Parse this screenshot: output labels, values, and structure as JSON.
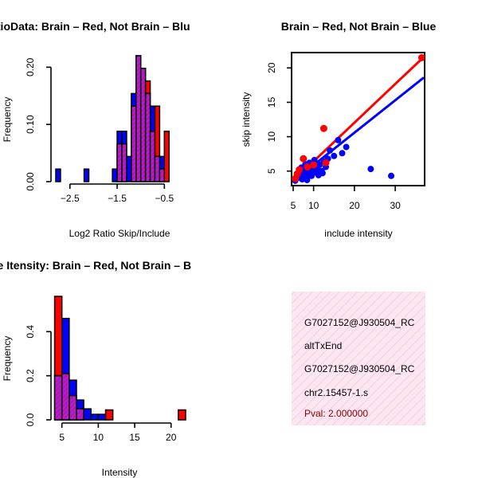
{
  "colors": {
    "brain": "#ff0000",
    "not_brain": "#0000ff",
    "overlap": "#a020f0",
    "outline": "#000000",
    "info_bg": "#f9dcec",
    "pval": "#8b0000"
  },
  "chart_data": [
    {
      "type": "bar",
      "subtype": "histogram",
      "title": "RatioData: Brain - Red, Not Brain - Blue",
      "title_visible": "RatioData: Brain – Red, Not Brain – Blu",
      "xlabel": "Log2 Ratio Skip/Include",
      "ylabel": "Frequency",
      "xticks": [
        -2.5,
        -1.5,
        -0.5
      ],
      "xtick_labels": [
        "−2.5",
        "−1.5",
        "−0.5"
      ],
      "yticks": [
        0.0,
        0.1,
        0.2
      ],
      "ytick_labels": [
        "0.00",
        "0.10",
        "0.20"
      ],
      "xlim": [
        -2.8,
        -0.05
      ],
      "ylim": [
        0,
        0.22
      ],
      "bin_width": 0.1,
      "series": [
        {
          "name": "Not Brain",
          "color": "blue",
          "bins": [
            {
              "x0": -2.8,
              "x1": -2.7,
              "value": 0.022
            },
            {
              "x0": -2.2,
              "x1": -2.1,
              "value": 0.022
            },
            {
              "x0": -1.6,
              "x1": -1.5,
              "value": 0.022
            },
            {
              "x0": -1.5,
              "x1": -1.4,
              "value": 0.088
            },
            {
              "x0": -1.4,
              "x1": -1.3,
              "value": 0.088
            },
            {
              "x0": -1.3,
              "x1": -1.2,
              "value": 0.044
            },
            {
              "x0": -1.2,
              "x1": -1.1,
              "value": 0.154
            },
            {
              "x0": -1.1,
              "x1": -1.0,
              "value": 0.22
            },
            {
              "x0": -1.0,
              "x1": -0.9,
              "value": 0.198
            },
            {
              "x0": -0.9,
              "x1": -0.8,
              "value": 0.154
            },
            {
              "x0": -0.8,
              "x1": -0.7,
              "value": 0.132
            },
            {
              "x0": -0.7,
              "x1": -0.6,
              "value": 0.044
            },
            {
              "x0": -0.6,
              "x1": -0.5,
              "value": 0.044
            }
          ]
        },
        {
          "name": "Brain",
          "color": "red",
          "bins": [
            {
              "x0": -1.5,
              "x1": -1.4,
              "value": 0.066
            },
            {
              "x0": -1.4,
              "x1": -1.3,
              "value": 0.066
            },
            {
              "x0": -1.2,
              "x1": -1.1,
              "value": 0.132
            },
            {
              "x0": -1.1,
              "x1": -1.0,
              "value": 0.22
            },
            {
              "x0": -1.0,
              "x1": -0.9,
              "value": 0.198
            },
            {
              "x0": -0.9,
              "x1": -0.8,
              "value": 0.176
            },
            {
              "x0": -0.8,
              "x1": -0.7,
              "value": 0.088
            },
            {
              "x0": -0.7,
              "x1": -0.6,
              "value": 0.132
            },
            {
              "x0": -0.6,
              "x1": -0.5,
              "value": 0.022
            },
            {
              "x0": -0.5,
              "x1": -0.4,
              "value": 0.088
            }
          ]
        }
      ]
    },
    {
      "type": "scatter",
      "title": "Brain - Red, Not Brain - Blue",
      "title_visible": "Brain – Red, Not Brain – Blue",
      "xlabel": "include intensity",
      "ylabel": "skip intensity",
      "xticks": [
        5,
        10,
        20,
        30
      ],
      "xtick_labels": [
        "5",
        "10",
        "20",
        "30"
      ],
      "yticks": [
        5,
        10,
        15,
        20
      ],
      "ytick_labels": [
        "5",
        "10",
        "15",
        "20"
      ],
      "xlim": [
        5,
        37
      ],
      "ylim": [
        3,
        22
      ],
      "series": [
        {
          "name": "Not Brain",
          "color": "blue",
          "points": [
            [
              5.5,
              3.6
            ],
            [
              6.0,
              4.0
            ],
            [
              6.2,
              4.4
            ],
            [
              6.5,
              4.9
            ],
            [
              7.0,
              5.5
            ],
            [
              7.2,
              3.8
            ],
            [
              7.5,
              4.6
            ],
            [
              7.8,
              5.2
            ],
            [
              8.0,
              6.0
            ],
            [
              8.2,
              4.2
            ],
            [
              8.5,
              5.8
            ],
            [
              8.8,
              4.5
            ],
            [
              9.0,
              6.2
            ],
            [
              9.2,
              5.0
            ],
            [
              9.5,
              4.3
            ],
            [
              10.0,
              5.6
            ],
            [
              10.5,
              4.8
            ],
            [
              11.0,
              5.2
            ],
            [
              11.2,
              4.4
            ],
            [
              11.5,
              5.9
            ],
            [
              12.0,
              5.0
            ],
            [
              12.5,
              6.4
            ],
            [
              13.0,
              5.6
            ],
            [
              13.5,
              6.8
            ],
            [
              14.0,
              8.0
            ],
            [
              15.0,
              7.2
            ],
            [
              16.0,
              9.5
            ],
            [
              17.0,
              7.6
            ],
            [
              18.0,
              8.5
            ],
            [
              24.0,
              5.3
            ],
            [
              29.0,
              4.3
            ],
            [
              6.8,
              4.1
            ],
            [
              8.4,
              3.7
            ],
            [
              10.2,
              6.6
            ],
            [
              12.2,
              4.7
            ]
          ],
          "fit": {
            "x0": 5,
            "y0": 3.5,
            "x1": 37,
            "y1": 18.6
          }
        },
        {
          "name": "Brain",
          "color": "red",
          "points": [
            [
              5.5,
              3.9
            ],
            [
              6.0,
              4.6
            ],
            [
              6.5,
              5.2
            ],
            [
              7.5,
              6.8
            ],
            [
              8.5,
              5.6
            ],
            [
              10.0,
              5.9
            ],
            [
              12.5,
              11.2
            ],
            [
              13.0,
              6.2
            ],
            [
              36.5,
              21.5
            ]
          ],
          "fit": {
            "x0": 5,
            "y0": 3.6,
            "x1": 37,
            "y1": 21.6
          }
        }
      ]
    },
    {
      "type": "bar",
      "subtype": "histogram",
      "title": "Gene Itensity: Brain - Red, Not Brain - B",
      "title_visible": "ne Itensity: Brain – Red, Not Brain – B",
      "xlabel": "Intensity",
      "ylabel": "Frequency",
      "xticks": [
        5,
        10,
        15,
        20
      ],
      "xtick_labels": [
        "5",
        "10",
        "15",
        "20"
      ],
      "yticks": [
        0.0,
        0.2,
        0.4
      ],
      "ytick_labels": [
        "0.0",
        "0.2",
        "0.4"
      ],
      "xlim": [
        3.5,
        22
      ],
      "ylim": [
        0,
        0.56
      ],
      "bin_width": 1,
      "series": [
        {
          "name": "Not Brain",
          "color": "blue",
          "bins": [
            {
              "x0": 4,
              "x1": 5,
              "value": 0.2
            },
            {
              "x0": 5,
              "x1": 6,
              "value": 0.46
            },
            {
              "x0": 6,
              "x1": 7,
              "value": 0.18
            },
            {
              "x0": 7,
              "x1": 8,
              "value": 0.09
            },
            {
              "x0": 8,
              "x1": 9,
              "value": 0.05
            },
            {
              "x0": 9,
              "x1": 10,
              "value": 0.025
            },
            {
              "x0": 10,
              "x1": 11,
              "value": 0.025
            }
          ]
        },
        {
          "name": "Brain",
          "color": "red",
          "bins": [
            {
              "x0": 4,
              "x1": 5,
              "value": 0.56
            },
            {
              "x0": 5,
              "x1": 6,
              "value": 0.21
            },
            {
              "x0": 6,
              "x1": 7,
              "value": 0.11
            },
            {
              "x0": 7,
              "x1": 8,
              "value": 0.05
            },
            {
              "x0": 11,
              "x1": 12,
              "value": 0.045
            },
            {
              "x0": 21,
              "x1": 22,
              "value": 0.045
            }
          ]
        }
      ]
    }
  ],
  "info_box": {
    "lines": [
      "G7027152@J930504_RC",
      "altTxEnd",
      "G7027152@J930504_RC",
      "chr2.15457-1.s"
    ],
    "pval": "Pval: 2.000000"
  }
}
